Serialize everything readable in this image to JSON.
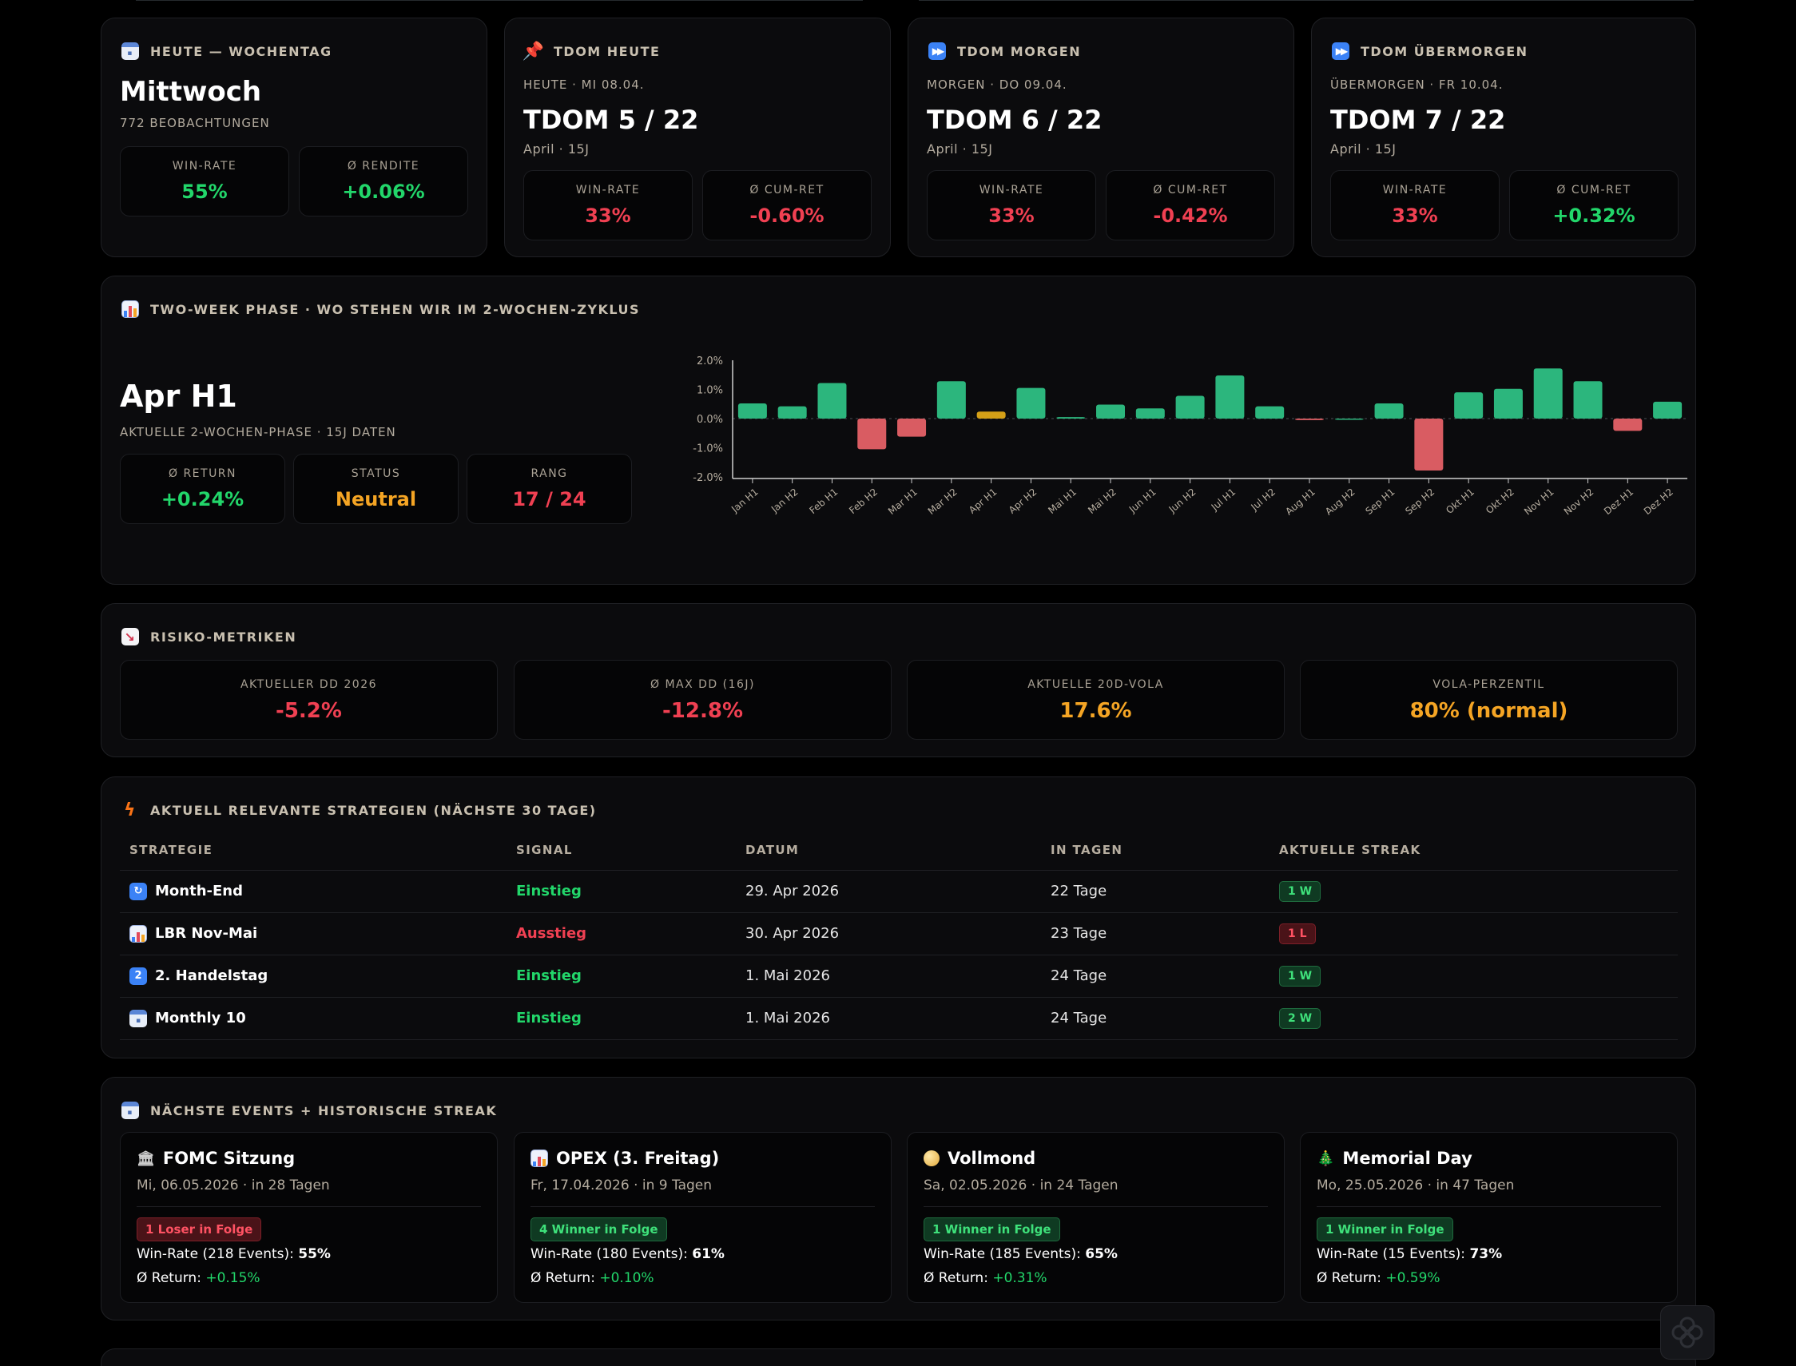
{
  "cards": [
    {
      "head": "HEUTE — WOCHENTAG",
      "icon": "calendar-icon",
      "title": "Mittwoch",
      "sub": "772 BEOBACHTUNGEN",
      "m1_label": "WIN-RATE",
      "m1_value": "55%",
      "m2_label": "Ø RENDITE",
      "m2_value": "+0.06%"
    },
    {
      "head": "TDOM HEUTE",
      "icon": "pin-icon",
      "top": "HEUTE · MI 08.04.",
      "title": "TDOM 5 / 22",
      "sub": "April · 15J",
      "m1_label": "WIN-RATE",
      "m1_value": "33%",
      "m2_label": "Ø CUM-RET",
      "m2_value": "-0.60%"
    },
    {
      "head": "TDOM MORGEN",
      "icon": "fast-forward-icon",
      "top": "MORGEN · DO 09.04.",
      "title": "TDOM 6 / 22",
      "sub": "April · 15J",
      "m1_label": "WIN-RATE",
      "m1_value": "33%",
      "m2_label": "Ø CUM-RET",
      "m2_value": "-0.42%"
    },
    {
      "head": "TDOM ÜBERMORGEN",
      "icon": "fast-forward-icon",
      "top": "ÜBERMORGEN · FR 10.04.",
      "title": "TDOM 7 / 22",
      "sub": "April · 15J",
      "m1_label": "WIN-RATE",
      "m1_value": "33%",
      "m2_label": "Ø CUM-RET",
      "m2_value": "+0.32%"
    }
  ],
  "phase": {
    "head": "TWO-WEEK PHASE · WO STEHEN WIR IM 2-WOCHEN-ZYKLUS",
    "title": "Apr H1",
    "sub": "AKTUELLE 2-WOCHEN-PHASE · 15J DATEN",
    "return_label": "Ø RETURN",
    "return_value": "+0.24%",
    "status_label": "STATUS",
    "status_value": "Neutral",
    "rank_label": "RANG",
    "rank_value": "17 / 24"
  },
  "chart_data": {
    "type": "bar",
    "categories": [
      "Jan H1",
      "Jan H2",
      "Feb H1",
      "Feb H2",
      "Mar H1",
      "Mar H2",
      "Apr H1",
      "Apr H2",
      "Mai H1",
      "Mai H2",
      "Jun H1",
      "Jun H2",
      "Jul H1",
      "Jul H2",
      "Aug H1",
      "Aug H2",
      "Sep H1",
      "Sep H2",
      "Okt H1",
      "Okt H2",
      "Nov H1",
      "Nov H2",
      "Dez H1",
      "Dez H2"
    ],
    "values": [
      0.52,
      0.42,
      1.22,
      -1.05,
      -0.62,
      1.28,
      0.24,
      1.05,
      0.05,
      0.48,
      0.35,
      0.78,
      1.48,
      0.42,
      -0.05,
      0.0,
      0.52,
      -1.78,
      0.9,
      1.02,
      1.72,
      1.28,
      -0.42,
      0.58
    ],
    "highlight_index": 6,
    "yticks": [
      "2.0%",
      "1.0%",
      "0.0%",
      "-1.0%",
      "-2.0%"
    ],
    "ylim": [
      -2.0,
      2.0
    ],
    "colors": {
      "positive": "#2cb67d",
      "negative": "#d95c62",
      "current": "#d4a017"
    }
  },
  "risk": {
    "head": "RISIKO-METRIKEN",
    "items": [
      {
        "label": "AKTUELLER DD 2026",
        "value": "-5.2%",
        "color": "red"
      },
      {
        "label": "Ø MAX DD (16J)",
        "value": "-12.8%",
        "color": "red"
      },
      {
        "label": "AKTUELLE 20D-VOLA",
        "value": "17.6%",
        "color": "orange"
      },
      {
        "label": "VOLA-PERZENTIL",
        "value": "80% (normal)",
        "color": "orange"
      }
    ]
  },
  "strategies": {
    "head": "AKTUELL RELEVANTE STRATEGIEN (NÄCHSTE 30 TAGE)",
    "columns": [
      "STRATEGIE",
      "SIGNAL",
      "DATUM",
      "IN TAGEN",
      "AKTUELLE STREAK"
    ],
    "rows": [
      {
        "icon": "cycle-icon",
        "glyph": "↻",
        "name": "Month-End",
        "signal": "Einstieg",
        "date": "29. Apr 2026",
        "days": "22 Tage",
        "streak": "1 W",
        "type": "w"
      },
      {
        "icon": "bar-chart-icon",
        "glyph": "",
        "name": "LBR Nov-Mai",
        "signal": "Ausstieg",
        "date": "30. Apr 2026",
        "days": "23 Tage",
        "streak": "1 L",
        "type": "l"
      },
      {
        "icon": "number-two-icon",
        "glyph": "2",
        "name": "2. Handelstag",
        "signal": "Einstieg",
        "date": "1. Mai 2026",
        "days": "24 Tage",
        "streak": "1 W",
        "type": "w"
      },
      {
        "icon": "calendar-icon",
        "glyph": "",
        "name": "Monthly 10",
        "signal": "Einstieg",
        "date": "1. Mai 2026",
        "days": "24 Tage",
        "streak": "2 W",
        "type": "w"
      }
    ]
  },
  "events": {
    "head": "NÄCHSTE EVENTS + HISTORISCHE STREAK",
    "items": [
      {
        "icon": "bank-icon",
        "glyph": "🏛",
        "title": "FOMC Sitzung",
        "date": "Mi, 06.05.2026 · in 28 Tagen",
        "badge": "1 Loser in Folge",
        "type": "l",
        "wr_label": "Win-Rate (218 Events): ",
        "wr": "55%",
        "ret_label": "Ø Return: ",
        "ret": "+0.15%"
      },
      {
        "icon": "bar-chart-icon",
        "glyph": "",
        "title": "OPEX (3. Freitag)",
        "date": "Fr, 17.04.2026 · in 9 Tagen",
        "badge": "4 Winner in Folge",
        "type": "w",
        "wr_label": "Win-Rate (180 Events): ",
        "wr": "61%",
        "ret_label": "Ø Return: ",
        "ret": "+0.10%"
      },
      {
        "icon": "full-moon-icon",
        "glyph": "",
        "title": "Vollmond",
        "date": "Sa, 02.05.2026 · in 24 Tagen",
        "badge": "1 Winner in Folge",
        "type": "w",
        "wr_label": "Win-Rate (185 Events): ",
        "wr": "65%",
        "ret_label": "Ø Return: ",
        "ret": "+0.31%"
      },
      {
        "icon": "tree-icon",
        "glyph": "🎄",
        "title": "Memorial Day",
        "date": "Mo, 25.05.2026 · in 47 Tagen",
        "badge": "1 Winner in Folge",
        "type": "w",
        "wr_label": "Win-Rate (15 Events): ",
        "wr": "73%",
        "ret_label": "Ø Return: ",
        "ret": "+0.59%"
      }
    ]
  }
}
